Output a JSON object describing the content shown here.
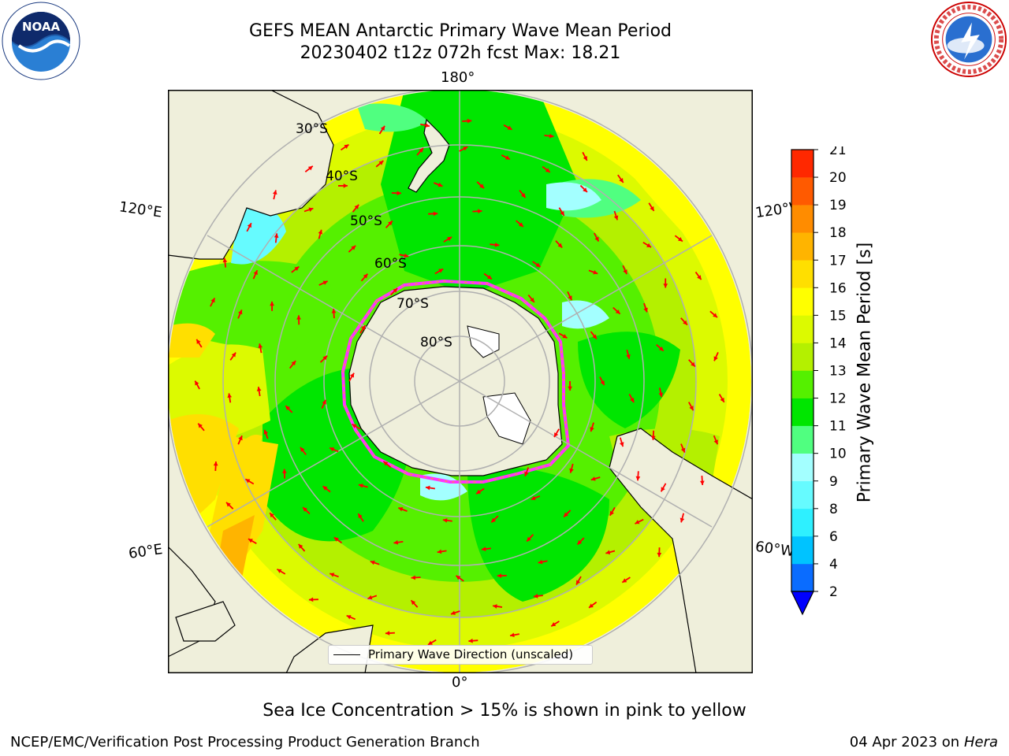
{
  "header": {
    "title_line1": "GEFS MEAN Antarctic Primary Wave Mean Period",
    "title_line2": "20230402 t12z 072h fcst   Max: 18.21"
  },
  "logos": {
    "left": "noaa-logo",
    "right": "nws-logo",
    "noaa_text": "NOAA"
  },
  "map": {
    "projection": "south-polar-stereographic",
    "longitude_labels": {
      "top": "180°",
      "bottom": "0°",
      "upper_left": "120°E",
      "upper_right": "120°W",
      "lower_left": "60°E",
      "lower_right": "60°W"
    },
    "latitude_labels": [
      "30°S",
      "40°S",
      "50°S",
      "60°S",
      "70°S",
      "80°S"
    ],
    "legend_label": "Primary Wave Direction (unscaled)"
  },
  "colorbar": {
    "label": "Primary Wave Mean Period [s]",
    "ticks": [
      "2",
      "4",
      "6",
      "8",
      "9",
      "10",
      "11",
      "12",
      "13",
      "14",
      "15",
      "16",
      "17",
      "18",
      "19",
      "20",
      "21"
    ],
    "colors": [
      "#0a6cff",
      "#00c3ff",
      "#2ef0ff",
      "#66fbff",
      "#a3ffff",
      "#50ff80",
      "#00e600",
      "#55f000",
      "#b4f000",
      "#dcfa00",
      "#ffff00",
      "#ffdf00",
      "#ffb400",
      "#ff8c00",
      "#ff5a00",
      "#ff2800",
      "#ff0000"
    ],
    "extend_color": "#0000ff"
  },
  "chart_data": {
    "type": "heatmap",
    "title": "GEFS MEAN Antarctic Primary Wave Mean Period",
    "subtitle": "20230402 t12z 072h fcst   Max: 18.21",
    "variable": "Primary Wave Mean Period [s]",
    "max": 18.21,
    "colorbar_range": [
      2,
      21
    ],
    "overlay": "Primary Wave Direction (unscaled)",
    "note": "Sea Ice Concentration > 15% is shown in pink to yellow"
  },
  "footer": {
    "note": "Sea Ice Concentration > 15% is shown in pink to yellow",
    "left": "NCEP/EMC/Verification Post Processing Product Generation Branch",
    "date": "04 Apr 2023 on ",
    "machine": "Hera"
  }
}
